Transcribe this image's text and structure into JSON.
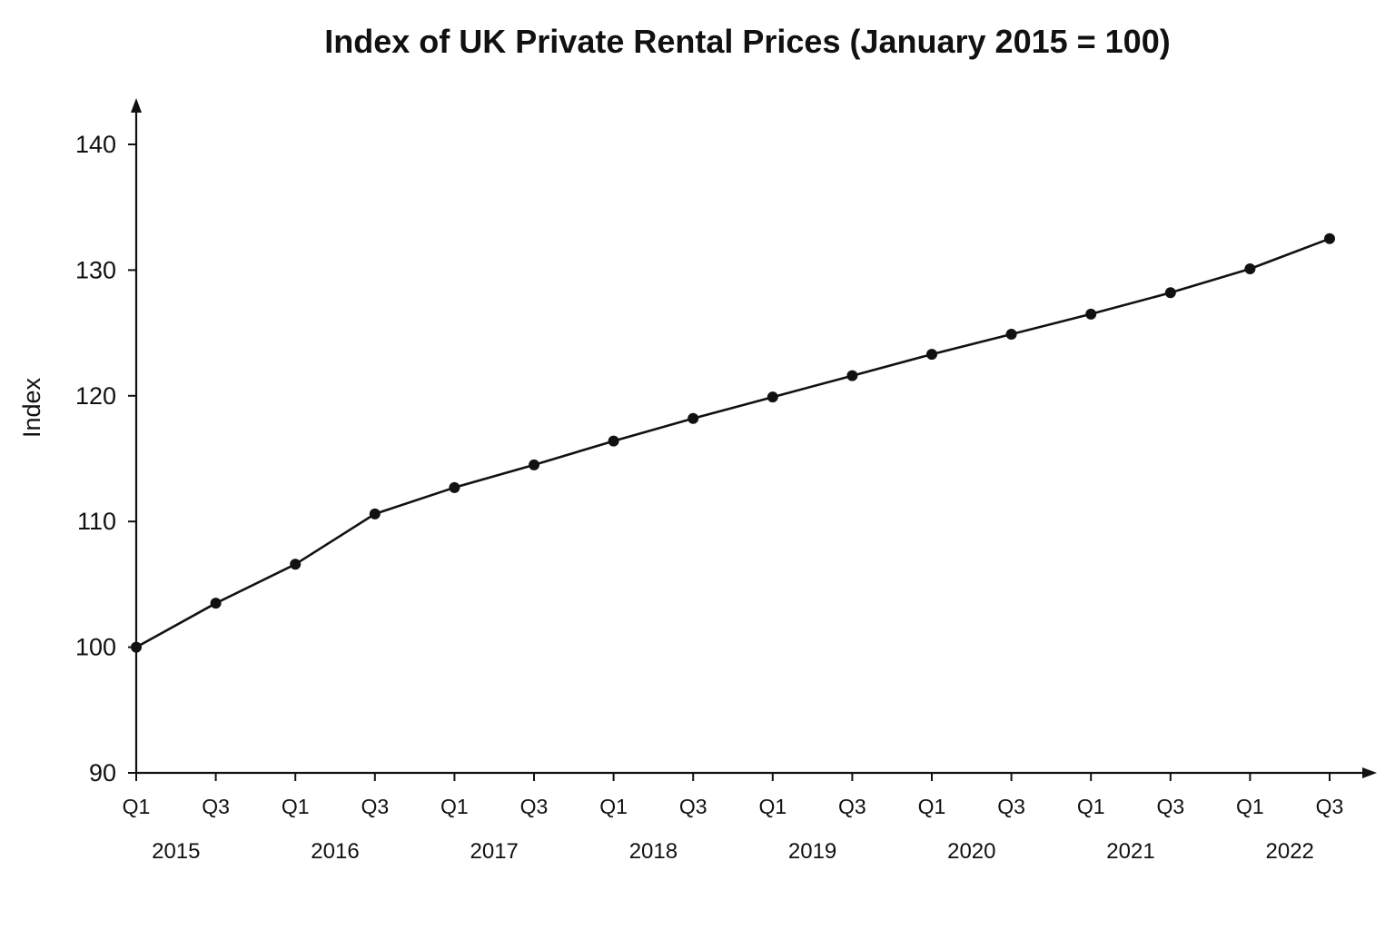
{
  "chart_data": {
    "type": "line",
    "title": "Index of UK Private Rental Prices (January 2015 = 100)",
    "xlabel": "",
    "ylabel": "Index",
    "ylim": [
      90,
      140
    ],
    "yticks": [
      "90",
      "100",
      "110",
      "120",
      "130",
      "140"
    ],
    "categories": [
      "2015 Q1",
      "2015 Q3",
      "2016 Q1",
      "2016 Q3",
      "2017 Q1",
      "2017 Q3",
      "2018 Q1",
      "2018 Q3",
      "2019 Q1",
      "2019 Q3",
      "2020 Q1",
      "2020 Q3",
      "2021 Q1",
      "2021 Q3",
      "2022 Q1",
      "2022 Q3"
    ],
    "x_tick_labels": [
      "Q1",
      "Q3",
      "Q1",
      "Q3",
      "Q1",
      "Q3",
      "Q1",
      "Q3",
      "Q1",
      "Q3",
      "Q1",
      "Q3",
      "Q1",
      "Q3",
      "Q1",
      "Q3"
    ],
    "year_labels": [
      "2015",
      "2016",
      "2017",
      "2018",
      "2019",
      "2020",
      "2021",
      "2022"
    ],
    "series": [
      {
        "values": [
          100.0,
          103.5,
          106.6,
          110.6,
          112.7,
          114.5,
          116.4,
          118.2,
          119.9,
          121.6,
          123.3,
          124.9,
          126.5,
          128.2,
          130.1,
          132.5
        ]
      }
    ],
    "grid": false,
    "legend": "none",
    "line_color": "#111111"
  }
}
